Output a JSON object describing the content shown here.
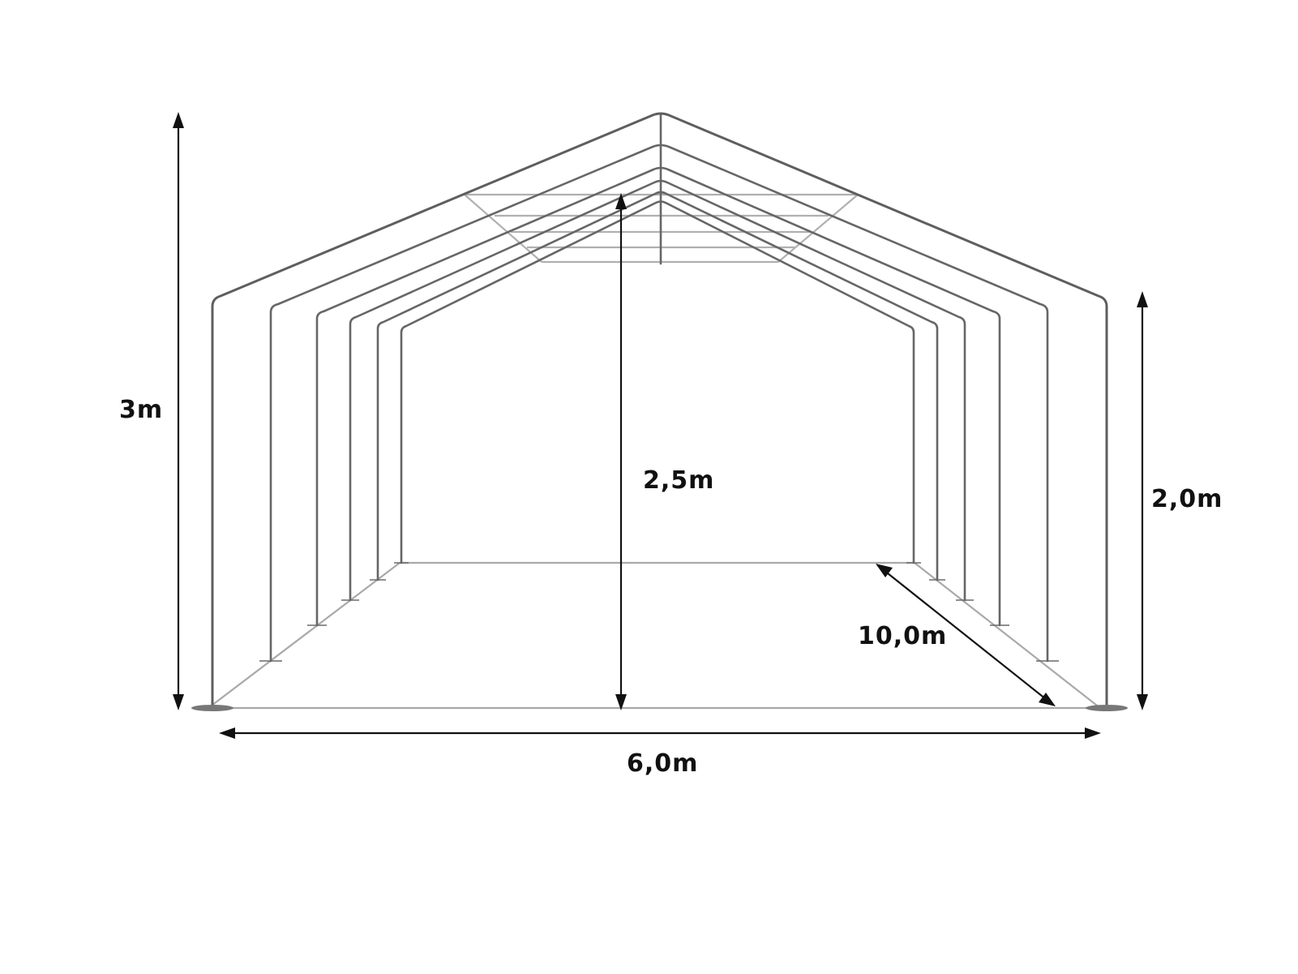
{
  "dimensions": {
    "total_height": "3m",
    "inner_height": "2,5m",
    "side_height": "2,0m",
    "length": "10,0m",
    "width": "6,0m"
  },
  "colors": {
    "frame": "#5e5e5e",
    "floor": "#a9a9a9",
    "arrows": "#111111",
    "background": "#ffffff"
  }
}
